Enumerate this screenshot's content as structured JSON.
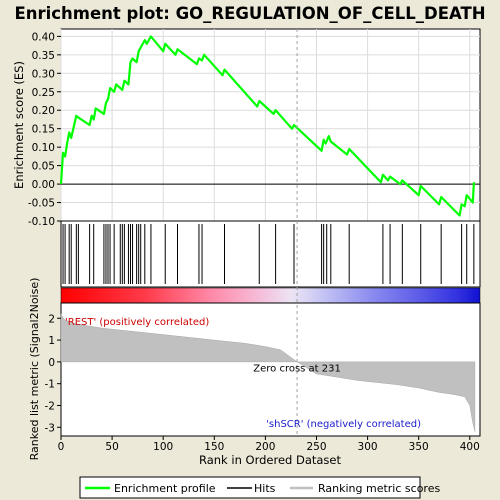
{
  "chart_data": {
    "type": "line",
    "title": "Enrichment plot: GO_REGULATION_OF_CELL_DEATH",
    "xlabel": "Rank in Ordered Dataset",
    "xlim": [
      0,
      410
    ],
    "x_ticks": [
      "0",
      "50",
      "100",
      "150",
      "200",
      "250",
      "300",
      "350",
      "400"
    ],
    "x_tick_values": [
      0,
      50,
      100,
      150,
      200,
      250,
      300,
      350,
      400
    ],
    "enrichment": {
      "ylabel": "Enrichment score (ES)",
      "ylim": [
        -0.1,
        0.42
      ],
      "y_ticks": [
        "-0.10",
        "-0.05",
        "0.00",
        "0.05",
        "0.10",
        "0.15",
        "0.20",
        "0.25",
        "0.30",
        "0.35",
        "0.40"
      ],
      "y_tick_values": [
        -0.1,
        -0.05,
        0,
        0.05,
        0.1,
        0.15,
        0.2,
        0.25,
        0.3,
        0.35,
        0.4
      ],
      "grid": true,
      "series_color": "#00ff00",
      "x": [
        0,
        2,
        4,
        6,
        8,
        10,
        15,
        17,
        28,
        30,
        32,
        34,
        42,
        44,
        46,
        48,
        52,
        54,
        60,
        62,
        66,
        68,
        70,
        74,
        76,
        78,
        82,
        84,
        88,
        100,
        102,
        112,
        114,
        133,
        135,
        138,
        140,
        158,
        160,
        192,
        194,
        208,
        210,
        226,
        228,
        255,
        257,
        259,
        262,
        264,
        280,
        282,
        313,
        315,
        320,
        322,
        332,
        334,
        350,
        352,
        370,
        372,
        390,
        392,
        395,
        397,
        403,
        404
      ],
      "values": [
        0.0,
        0.085,
        0.075,
        0.11,
        0.14,
        0.125,
        0.185,
        0.18,
        0.16,
        0.185,
        0.175,
        0.205,
        0.19,
        0.22,
        0.23,
        0.26,
        0.25,
        0.27,
        0.255,
        0.28,
        0.27,
        0.33,
        0.34,
        0.33,
        0.36,
        0.37,
        0.39,
        0.38,
        0.4,
        0.36,
        0.38,
        0.35,
        0.365,
        0.325,
        0.34,
        0.335,
        0.35,
        0.295,
        0.31,
        0.21,
        0.225,
        0.19,
        0.2,
        0.15,
        0.16,
        0.09,
        0.12,
        0.11,
        0.13,
        0.115,
        0.08,
        0.095,
        0.005,
        0.025,
        0.01,
        0.02,
        0.0,
        0.01,
        -0.03,
        -0.005,
        -0.055,
        -0.035,
        -0.085,
        -0.055,
        -0.06,
        -0.03,
        -0.05,
        0.005
      ]
    },
    "hits": [
      0,
      2,
      4,
      8,
      10,
      15,
      17,
      28,
      32,
      42,
      44,
      46,
      48,
      52,
      58,
      60,
      62,
      66,
      68,
      70,
      74,
      76,
      78,
      82,
      88,
      102,
      114,
      135,
      138,
      160,
      194,
      210,
      228,
      255,
      257,
      260,
      264,
      282,
      315,
      322,
      334,
      352,
      372,
      392,
      397,
      404
    ],
    "ranked_metric": {
      "ylabel": "Ranked list metric (Signal2Noise)",
      "ylim": [
        -3.4,
        2.7
      ],
      "y_ticks": [
        "2",
        "1",
        "0",
        "-1",
        "-2",
        "-3"
      ],
      "y_tick_values": [
        2,
        1,
        0,
        -1,
        -2,
        -3
      ],
      "x": [
        0,
        3,
        10,
        20,
        40,
        60,
        80,
        100,
        120,
        140,
        160,
        180,
        200,
        215,
        231,
        250,
        270,
        290,
        310,
        330,
        350,
        370,
        385,
        395,
        400,
        403,
        405
      ],
      "values": [
        2.2,
        1.95,
        1.8,
        1.7,
        1.55,
        1.45,
        1.35,
        1.25,
        1.15,
        1.05,
        0.95,
        0.85,
        0.7,
        0.55,
        0.0,
        -0.55,
        -0.7,
        -0.85,
        -0.95,
        -1.05,
        -1.2,
        -1.4,
        -1.5,
        -1.6,
        -2.0,
        -2.8,
        -3.2
      ],
      "pos_label": "'REST' (positively correlated)",
      "neg_label": "'shSCR' (negatively correlated)",
      "zero_cross_label": "Zero cross at 231",
      "zero_cross": 231
    },
    "legend": {
      "placement": "bottom",
      "items": [
        {
          "label": "Enrichment profile",
          "color": "#00ff00"
        },
        {
          "label": "Hits",
          "color": "#000000"
        },
        {
          "label": "Ranking metric scores",
          "color": "#c0c0c0"
        }
      ]
    }
  }
}
